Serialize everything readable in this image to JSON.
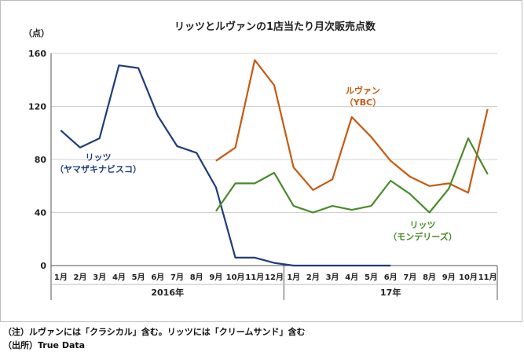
{
  "chart_data": {
    "type": "line",
    "title": "リッツとルヴァンの1店当たり月次販売点数",
    "ylabel": "（点）",
    "ylim": [
      0,
      160
    ],
    "yticks": [
      0,
      40,
      80,
      120,
      160
    ],
    "categories": [
      "1月",
      "2月",
      "3月",
      "4月",
      "5月",
      "6月",
      "7月",
      "8月",
      "9月",
      "10月",
      "11月",
      "12月",
      "1月",
      "2月",
      "3月",
      "4月",
      "5月",
      "6月",
      "7月",
      "8月",
      "9月",
      "10月",
      "11月"
    ],
    "year_groups": [
      {
        "label": "2016年",
        "start": 0,
        "end": 11
      },
      {
        "label": "17年",
        "start": 12,
        "end": 22
      }
    ],
    "series": [
      {
        "name": "リッツ（ヤマザキナビスコ）",
        "label_lines": [
          "リッツ",
          "（ヤマザキナビスコ）"
        ],
        "color": "#1f3d7a",
        "values": [
          102,
          89,
          96,
          151,
          149,
          113,
          90,
          85,
          59,
          6,
          6,
          2,
          0,
          0,
          0,
          0,
          0,
          0,
          null,
          null,
          null,
          null,
          null
        ]
      },
      {
        "name": "ルヴァン（YBC）",
        "label_lines": [
          "ルヴァン",
          "（YBC）"
        ],
        "color": "#c55a11",
        "values": [
          null,
          null,
          null,
          null,
          null,
          null,
          null,
          null,
          79,
          89,
          155,
          136,
          74,
          57,
          65,
          112,
          97,
          79,
          67,
          60,
          62,
          55,
          118
        ]
      },
      {
        "name": "リッツ（モンデリーズ）",
        "label_lines": [
          "リッツ",
          "（モンデリーズ）"
        ],
        "color": "#4a8a2a",
        "values": [
          null,
          null,
          null,
          null,
          null,
          null,
          null,
          null,
          41,
          62,
          62,
          70,
          45,
          40,
          45,
          42,
          45,
          64,
          54,
          40,
          58,
          96,
          69
        ]
      }
    ]
  },
  "footnotes": {
    "note": "（注）ルヴァンには「クラシカル」含む。リッツには「クリームサンド」含む",
    "source": "（出所）True Data"
  }
}
